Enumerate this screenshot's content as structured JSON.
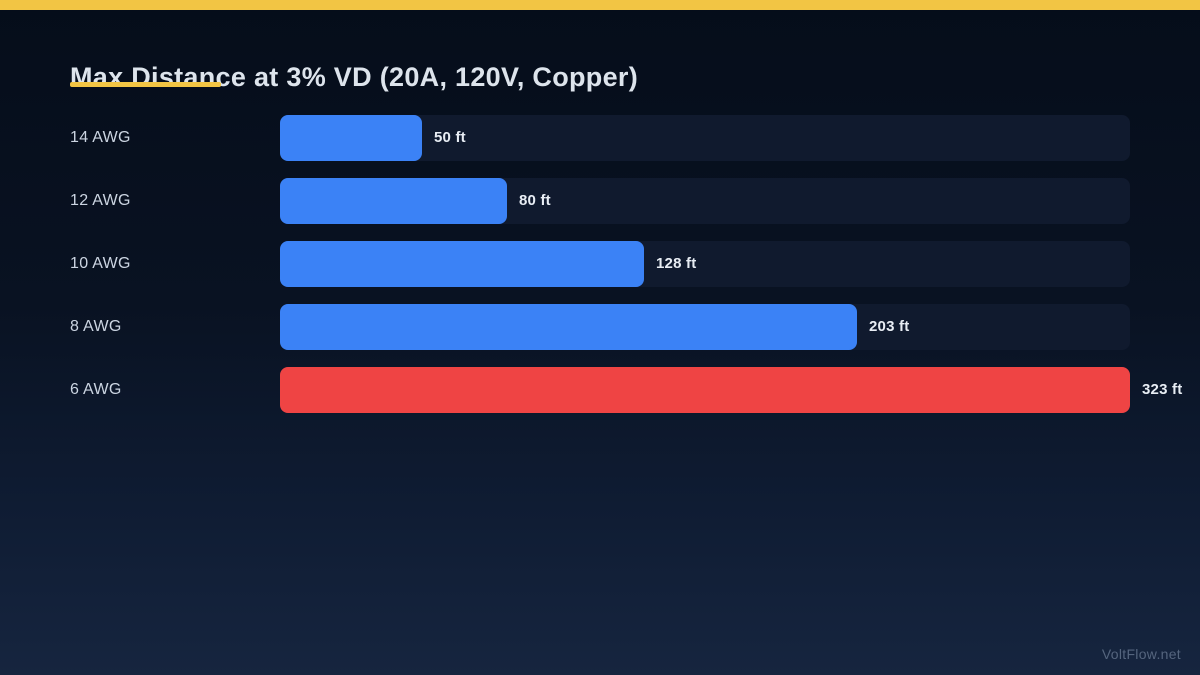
{
  "page": {
    "accent_color": "#f2c544",
    "background_top": "#050d1a",
    "background_bottom": "#16253f",
    "watermark": "VoltFlow.net"
  },
  "header": {
    "title": "Max Distance at 3% VD (20A, 120V, Copper)"
  },
  "chart_data": {
    "type": "bar",
    "orientation": "horizontal",
    "title": "Max Distance at 3% VD (20A, 120V, Copper)",
    "categories": [
      "14 AWG",
      "12 AWG",
      "10 AWG",
      "8 AWG",
      "6 AWG"
    ],
    "values": [
      50,
      80,
      128,
      203,
      323
    ],
    "value_labels": [
      "50 ft",
      "80 ft",
      "128 ft",
      "203 ft",
      "323 ft"
    ],
    "unit": "ft",
    "bar_colors": [
      "#3b82f6",
      "#3b82f6",
      "#3b82f6",
      "#3b82f6",
      "#ef4444"
    ],
    "highlight_index": 4,
    "track_color": "#101a2e",
    "value_label_color": "#e8edf4",
    "category_label_color": "#ccd5e2",
    "xlim": [
      0,
      323
    ],
    "grid": false,
    "legend": false,
    "xlabel": "",
    "ylabel": ""
  }
}
